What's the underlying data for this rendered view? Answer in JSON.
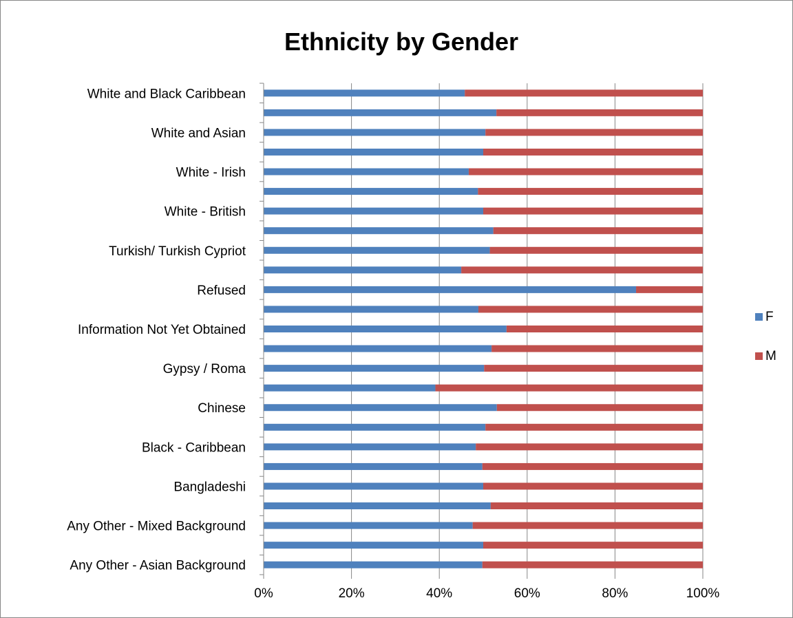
{
  "chart_data": {
    "type": "bar",
    "orientation": "horizontal",
    "stacked": "percent",
    "title": "Ethnicity by Gender",
    "xlabel": "",
    "ylabel": "",
    "xlim": [
      0,
      100
    ],
    "x_ticks": [
      "0%",
      "20%",
      "40%",
      "60%",
      "80%",
      "100%"
    ],
    "categories": [
      "White and Black Caribbean",
      "",
      "White and Asian",
      "",
      "White - Irish",
      "",
      "White - British",
      "",
      "Turkish/ Turkish Cypriot",
      "",
      "Refused",
      "",
      "Information Not Yet Obtained",
      "",
      "Gypsy / Roma",
      "",
      "Chinese",
      "",
      "Black - Caribbean",
      "",
      "Bangladeshi",
      "",
      "Any Other - Mixed Background",
      "",
      "Any Other - Asian Background"
    ],
    "series": [
      {
        "name": "F",
        "color": "#4f81bd",
        "values": [
          45.8,
          53.0,
          50.5,
          50.0,
          46.7,
          48.8,
          50.0,
          52.3,
          51.5,
          45.0,
          84.8,
          48.9,
          55.3,
          51.9,
          50.2,
          39.1,
          53.1,
          50.5,
          48.3,
          49.8,
          50.0,
          51.7,
          47.6,
          50.0,
          49.8
        ]
      },
      {
        "name": "M",
        "color": "#c0504d",
        "values": [
          54.2,
          47.0,
          49.5,
          50.0,
          53.3,
          51.2,
          50.0,
          47.7,
          48.5,
          55.0,
          15.2,
          51.1,
          44.7,
          48.1,
          49.8,
          60.9,
          46.9,
          49.5,
          51.7,
          50.2,
          50.0,
          48.3,
          52.4,
          50.0,
          50.2
        ]
      }
    ],
    "grid": true,
    "legend": "right"
  }
}
